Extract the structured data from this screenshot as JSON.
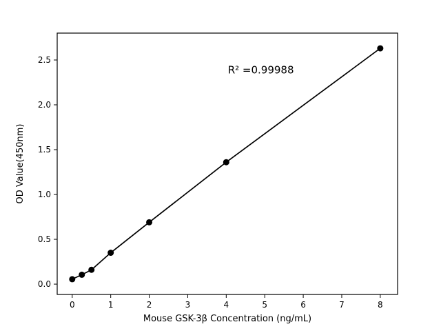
{
  "chart_data": {
    "type": "scatter",
    "title": "",
    "xlabel": "Mouse GSK-3β Concentration (ng/mL)",
    "ylabel": "OD Value(450nm)",
    "annotation": {
      "text": "R² =0.99988",
      "x": 4.9,
      "y": 2.39
    },
    "x": [
      0,
      0.25,
      0.5,
      1,
      2,
      4,
      8
    ],
    "y": [
      0.055,
      0.105,
      0.16,
      0.35,
      0.69,
      1.36,
      2.63
    ],
    "xticks": [
      0,
      1,
      2,
      3,
      4,
      5,
      6,
      7,
      8
    ],
    "yticks": [
      0.0,
      0.5,
      1.0,
      1.5,
      2.0,
      2.5
    ],
    "xlim": [
      -0.39,
      8.45
    ],
    "ylim": [
      -0.115,
      2.8
    ],
    "line": true,
    "grid": false,
    "legend": "none",
    "marker_color": "#000000",
    "line_color": "#000000",
    "axis_color": "#000000",
    "background": "#ffffff"
  }
}
